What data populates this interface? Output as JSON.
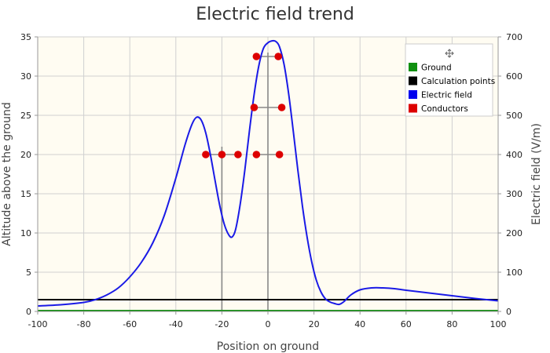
{
  "chart_data": {
    "type": "line",
    "title": "Electric field trend",
    "xlabel": "Position on ground",
    "ylabel_left": "Altitude above the ground",
    "ylabel_right": "Electric field (V/m)",
    "xlim": [
      -100,
      100
    ],
    "ylim_left": [
      0,
      35
    ],
    "ylim_right": [
      0,
      700
    ],
    "x_ticks": [
      -100,
      -80,
      -60,
      -40,
      -20,
      0,
      20,
      40,
      60,
      80,
      100
    ],
    "y_ticks_left": [
      0,
      5,
      10,
      15,
      20,
      25,
      30,
      35
    ],
    "y_ticks_right": [
      0,
      100,
      200,
      300,
      400,
      500,
      600,
      700
    ],
    "grid": true,
    "legend_position": "top-right",
    "legend": [
      {
        "label": "Ground",
        "color": "#109010"
      },
      {
        "label": "Calculation points",
        "color": "#000000"
      },
      {
        "label": "Electric field",
        "color": "#0000ee"
      },
      {
        "label": "Conductors",
        "color": "#dd0000"
      }
    ],
    "ground": {
      "y": 0,
      "x": [
        -100,
        100
      ]
    },
    "calculation_points": {
      "y": 1.5,
      "x": [
        -100,
        100
      ]
    },
    "electric_field": {
      "axis": "right",
      "x": [
        -100,
        -90,
        -80,
        -75,
        -70,
        -65,
        -60,
        -55,
        -50,
        -45,
        -40,
        -36,
        -33,
        -31,
        -29,
        -27,
        -25,
        -23,
        -21,
        -19,
        -17,
        -15.5,
        -14,
        -12,
        -10,
        -8,
        -6,
        -4,
        -2,
        0,
        2,
        3.5,
        5,
        7,
        9,
        11,
        13,
        15,
        17,
        19,
        21,
        23,
        25,
        27,
        29,
        31,
        33,
        36,
        40,
        45,
        50,
        55,
        60,
        70,
        80,
        90,
        100
      ],
      "y": [
        14,
        17,
        23,
        30,
        42,
        60,
        88,
        125,
        175,
        245,
        340,
        425,
        477,
        495,
        488,
        455,
        400,
        335,
        272,
        223,
        195,
        190,
        210,
        275,
        362,
        462,
        553,
        625,
        670,
        685,
        690,
        688,
        675,
        630,
        555,
        460,
        360,
        268,
        190,
        127,
        80,
        50,
        32,
        24,
        20,
        18,
        25,
        42,
        55,
        60,
        60,
        58,
        54,
        47,
        40,
        33,
        27
      ]
    },
    "conductors": [
      {
        "x": -27,
        "y": 20
      },
      {
        "x": -20,
        "y": 20
      },
      {
        "x": -13,
        "y": 20
      },
      {
        "x": -5,
        "y": 20
      },
      {
        "x": 5,
        "y": 20
      },
      {
        "x": -6,
        "y": 26
      },
      {
        "x": 6,
        "y": 26
      },
      {
        "x": -5,
        "y": 32.5
      },
      {
        "x": 4.5,
        "y": 32.5
      }
    ],
    "towers": [
      {
        "x": -20,
        "bottom": 0,
        "top": 21,
        "arms": [
          [
            -27,
            -13,
            20
          ]
        ]
      },
      {
        "x": 0,
        "bottom": 0,
        "top": 33,
        "arms": [
          [
            -5,
            5,
            20
          ],
          [
            -6,
            6,
            26
          ],
          [
            -5,
            4.5,
            32.5
          ]
        ]
      }
    ]
  }
}
